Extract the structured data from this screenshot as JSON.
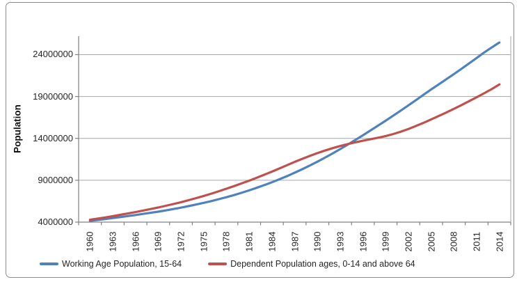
{
  "chart_data": {
    "type": "line",
    "title": "",
    "xlabel": "",
    "ylabel": "Population",
    "x": [
      1960,
      1961,
      1962,
      1963,
      1964,
      1965,
      1966,
      1967,
      1968,
      1969,
      1970,
      1971,
      1972,
      1973,
      1974,
      1975,
      1976,
      1977,
      1978,
      1979,
      1980,
      1981,
      1982,
      1983,
      1984,
      1985,
      1986,
      1987,
      1988,
      1989,
      1990,
      1991,
      1992,
      1993,
      1994,
      1995,
      1996,
      1997,
      1998,
      1999,
      2000,
      2001,
      2002,
      2003,
      2004,
      2005,
      2006,
      2007,
      2008,
      2009,
      2010,
      2011,
      2012,
      2013,
      2014
    ],
    "x_tick_labels": [
      "1960",
      "1963",
      "1966",
      "1969",
      "1972",
      "1975",
      "1978",
      "1981",
      "1984",
      "1987",
      "1990",
      "1993",
      "1996",
      "1999",
      "2002",
      "2005",
      "2008",
      "2011",
      "2014"
    ],
    "y_ticks": [
      4000000,
      9000000,
      14000000,
      19000000,
      24000000
    ],
    "y_tick_labels": [
      "4000000",
      "9000000",
      "14000000",
      "19000000",
      "24000000"
    ],
    "ylim": [
      4000000,
      26200000
    ],
    "grid": true,
    "legend_position": "bottom",
    "series": [
      {
        "name": "Working Age Population, 15-64",
        "color": "#4F81BD",
        "values": [
          4150000,
          4260000,
          4370000,
          4480000,
          4600000,
          4720000,
          4850000,
          4980000,
          5110000,
          5250000,
          5400000,
          5560000,
          5730000,
          5910000,
          6100000,
          6300000,
          6510000,
          6740000,
          6980000,
          7230000,
          7500000,
          7790000,
          8100000,
          8420000,
          8760000,
          9120000,
          9500000,
          9900000,
          10320000,
          10760000,
          11220000,
          11700000,
          12200000,
          12720000,
          13260000,
          13810000,
          14370000,
          14940000,
          15520000,
          16110000,
          16710000,
          17320000,
          17940000,
          18570000,
          19210000,
          19850000,
          20450000,
          21060000,
          21680000,
          22310000,
          22950000,
          23600000,
          24260000,
          24860000,
          25450000
        ]
      },
      {
        "name": "Dependent Population ages, 0-14 and above 64",
        "color": "#C0504D",
        "values": [
          4280000,
          4420000,
          4560000,
          4710000,
          4870000,
          5030000,
          5200000,
          5380000,
          5560000,
          5750000,
          5950000,
          6160000,
          6380000,
          6620000,
          6870000,
          7130000,
          7400000,
          7690000,
          7990000,
          8300000,
          8620000,
          8950000,
          9300000,
          9660000,
          10030000,
          10410000,
          10800000,
          11190000,
          11560000,
          11910000,
          12240000,
          12550000,
          12830000,
          13090000,
          13320000,
          13530000,
          13720000,
          13900000,
          14080000,
          14280000,
          14520000,
          14800000,
          15120000,
          15480000,
          15860000,
          16260000,
          16670000,
          17090000,
          17530000,
          17980000,
          18440000,
          18910000,
          19390000,
          19890000,
          20450000
        ]
      }
    ]
  },
  "colors": {
    "grid": "#A6A6A6",
    "axis": "#808080",
    "frame": "#8C8C8C",
    "text": "#262626"
  }
}
